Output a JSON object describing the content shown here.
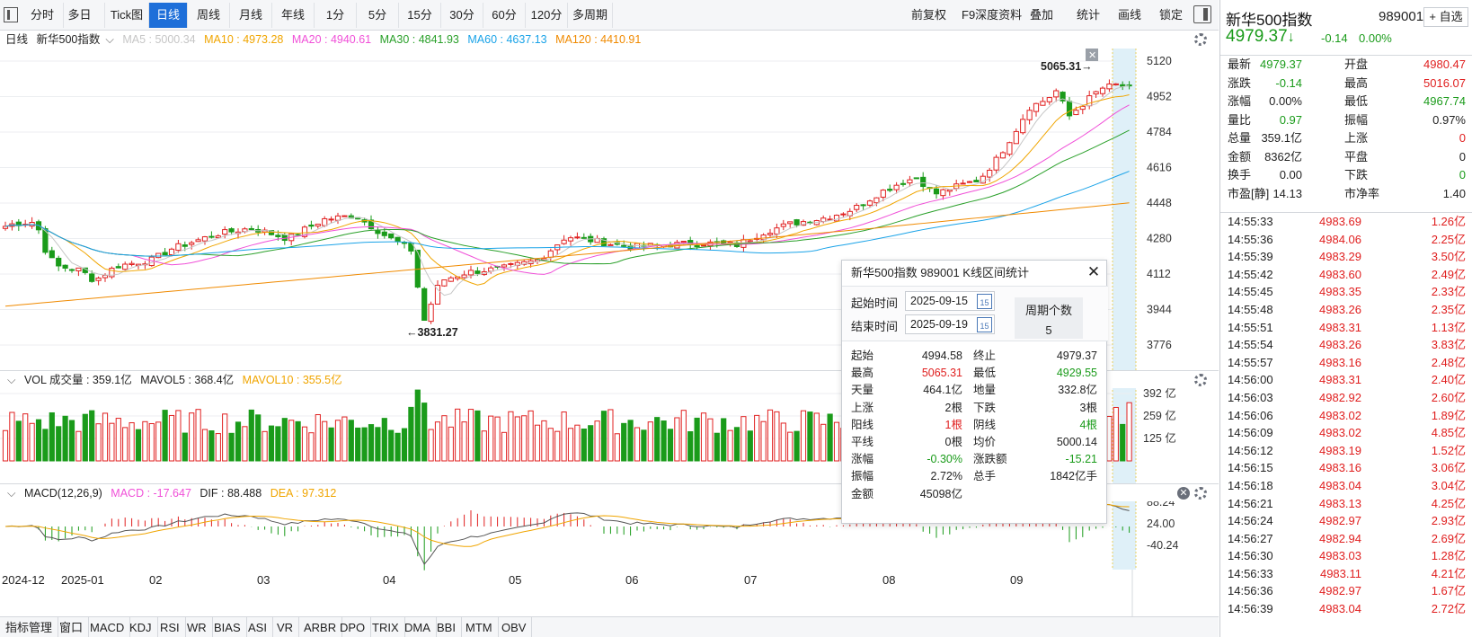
{
  "toolbar": {
    "tabs": [
      "分时",
      "多日",
      "Tick图",
      "日线",
      "周线",
      "月线",
      "年线",
      "1分",
      "5分",
      "15分",
      "30分",
      "60分",
      "120分",
      "多周期"
    ],
    "right": [
      "前复权",
      "F9深度资料",
      "叠加",
      "统计",
      "画线",
      "锁定"
    ]
  },
  "legend": {
    "period": "日线",
    "name": "新华500指数",
    "ma5": "MA5 : 5000.34",
    "ma10": "MA10 : 4973.28",
    "ma20": "MA20 : 4940.61",
    "ma30": "MA30 : 4841.93",
    "ma60": "MA60 : 4637.13",
    "ma120": "MA120 : 4410.91"
  },
  "colors": {
    "ma5": "#c6c6c6",
    "ma10": "#f0a500",
    "ma20": "#f050d8",
    "ma30": "#2aa02a",
    "ma60": "#1aa3e8",
    "ma120": "#f08a00",
    "up": "#e02020",
    "down": "#1a9b1a",
    "accent": "#1e6fd9"
  },
  "price_axis": [
    "5120",
    "4952",
    "4784",
    "4616",
    "4448",
    "4280",
    "4112",
    "3944",
    "3776"
  ],
  "annotations": {
    "high": "5065.31→",
    "low": "←3831.27"
  },
  "vol": {
    "title": "VOL 成交量 : 359.1亿",
    "mavol5": "MAVOL5 : 368.4亿",
    "mavol10": "MAVOL10 : 355.5亿",
    "axis": [
      "392 亿",
      "259 亿",
      "125 亿"
    ]
  },
  "macd": {
    "title": "MACD(12,26,9)",
    "macd": "MACD : -17.647",
    "dif": "DIF : 88.488",
    "dea": "DEA : 97.312",
    "axis": [
      "88.24",
      "24.00",
      "-40.24"
    ]
  },
  "date_axis": [
    "2024-12",
    "2025-01",
    "02",
    "03",
    "04",
    "05",
    "06",
    "07",
    "08",
    "09"
  ],
  "bottombar": [
    "指标管理",
    "窗口",
    "MACD",
    "KDJ",
    "RSI",
    "WR",
    "BIAS",
    "ASI",
    "VR",
    "ARBR",
    "DPO",
    "TRIX",
    "DMA",
    "BBI",
    "MTM",
    "OBV"
  ],
  "right": {
    "title": "新华500指数",
    "code": "989001",
    "add_watch": "+ 自选",
    "price": "4979.37",
    "arrow": "↓",
    "change": "-0.14",
    "change_pct": "0.00%",
    "quotes": [
      [
        "最新",
        "4979.37",
        "green",
        "开盘",
        "4980.47",
        "red"
      ],
      [
        "涨跌",
        "-0.14",
        "green",
        "最高",
        "5016.07",
        "red"
      ],
      [
        "涨幅",
        "0.00%",
        "black",
        "最低",
        "4967.74",
        "green"
      ],
      [
        "量比",
        "0.97",
        "green",
        "振幅",
        "0.97%",
        "black"
      ],
      [
        "总量",
        "359.1亿",
        "black",
        "上涨",
        "0",
        "red"
      ],
      [
        "金额",
        "8362亿",
        "black",
        "平盘",
        "0",
        "black"
      ],
      [
        "换手",
        "0.00",
        "black",
        "下跌",
        "0",
        "green"
      ],
      [
        "市盈[静]",
        "14.13",
        "black",
        "市净率",
        "1.40",
        "black"
      ]
    ],
    "ticks": [
      [
        "14:55:33",
        "4983.69",
        "1.26亿"
      ],
      [
        "14:55:36",
        "4984.06",
        "2.25亿"
      ],
      [
        "14:55:39",
        "4983.29",
        "3.50亿"
      ],
      [
        "14:55:42",
        "4983.60",
        "2.49亿"
      ],
      [
        "14:55:45",
        "4983.35",
        "2.33亿"
      ],
      [
        "14:55:48",
        "4983.26",
        "2.35亿"
      ],
      [
        "14:55:51",
        "4983.31",
        "1.13亿"
      ],
      [
        "14:55:54",
        "4983.26",
        "3.83亿"
      ],
      [
        "14:55:57",
        "4983.16",
        "2.48亿"
      ],
      [
        "14:56:00",
        "4983.31",
        "2.40亿"
      ],
      [
        "14:56:03",
        "4982.92",
        "2.60亿"
      ],
      [
        "14:56:06",
        "4983.02",
        "1.89亿"
      ],
      [
        "14:56:09",
        "4983.02",
        "4.85亿"
      ],
      [
        "14:56:12",
        "4983.19",
        "1.52亿"
      ],
      [
        "14:56:15",
        "4983.16",
        "3.06亿"
      ],
      [
        "14:56:18",
        "4983.04",
        "3.04亿"
      ],
      [
        "14:56:21",
        "4983.13",
        "4.25亿"
      ],
      [
        "14:56:24",
        "4982.97",
        "2.93亿"
      ],
      [
        "14:56:27",
        "4982.94",
        "2.69亿"
      ],
      [
        "14:56:30",
        "4983.03",
        "1.28亿"
      ],
      [
        "14:56:33",
        "4983.11",
        "4.21亿"
      ],
      [
        "14:56:36",
        "4982.97",
        "1.67亿"
      ],
      [
        "14:56:39",
        "4983.04",
        "2.72亿"
      ]
    ]
  },
  "popup": {
    "title": "新华500指数 989001 K线区间统计",
    "start_label": "起始时间",
    "start_date": "2025-09-15",
    "end_label": "结束时间",
    "end_date": "2025-09-19",
    "period_label": "周期个数",
    "period_value": "5",
    "cal": "15",
    "rows": [
      [
        "起始",
        "4994.58",
        "black",
        "终止",
        "4979.37",
        "black"
      ],
      [
        "最高",
        "5065.31",
        "red",
        "最低",
        "4929.55",
        "green"
      ],
      [
        "天量",
        "464.1亿",
        "black",
        "地量",
        "332.8亿",
        "black"
      ],
      [
        "上涨",
        "2根",
        "black",
        "下跌",
        "3根",
        "black"
      ],
      [
        "阳线",
        "1根",
        "red",
        "阴线",
        "4根",
        "green"
      ],
      [
        "平线",
        "0根",
        "black",
        "均价",
        "5000.14",
        "black"
      ],
      [
        "涨幅",
        "-0.30%",
        "green",
        "涨跌额",
        "-15.21",
        "green"
      ],
      [
        "振幅",
        "2.72%",
        "black",
        "总手",
        "1842亿手",
        "black"
      ],
      [
        "金额",
        "45098亿",
        "black",
        "",
        "",
        " black"
      ]
    ]
  }
}
